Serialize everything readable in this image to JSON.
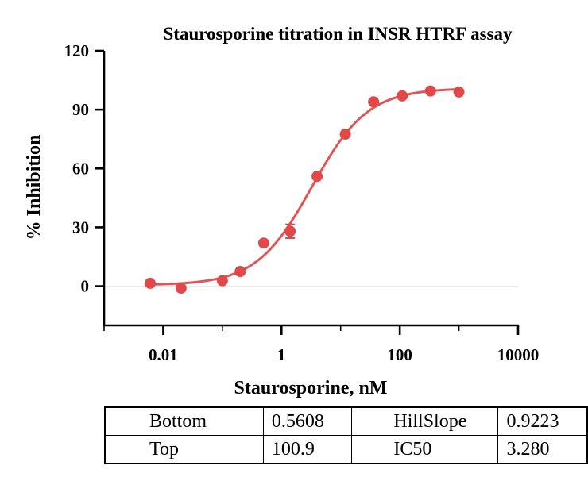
{
  "chart_data": {
    "type": "scatter",
    "title": "Staurosporine titration in INSR HTRF assay",
    "xlabel": "Staurosporine, nM",
    "ylabel": "% Inhibition",
    "x_scale": "log10",
    "xlim": [
      0.001,
      10000
    ],
    "ylim": [
      -20,
      120
    ],
    "x_ticks": [
      0.01,
      1,
      100,
      10000
    ],
    "x_tick_labels": [
      "0.01",
      "1",
      "100",
      "10000"
    ],
    "y_ticks": [
      0,
      30,
      60,
      90,
      120
    ],
    "y_tick_labels": [
      "0",
      "30",
      "60",
      "90",
      "120"
    ],
    "series": [
      {
        "points": [
          {
            "x": 0.006,
            "y": 1.5
          },
          {
            "x": 0.02,
            "y": -1.0
          },
          {
            "x": 0.1,
            "y": 2.8
          },
          {
            "x": 0.2,
            "y": 7.5
          },
          {
            "x": 0.5,
            "y": 22.0
          },
          {
            "x": 1.4,
            "y": 28.0,
            "err": 3.5
          },
          {
            "x": 4.0,
            "y": 56.0
          },
          {
            "x": 12.0,
            "y": 77.5
          },
          {
            "x": 36.0,
            "y": 94.0
          },
          {
            "x": 110.0,
            "y": 97.0
          },
          {
            "x": 330.0,
            "y": 99.5
          },
          {
            "x": 1000.0,
            "y": 99.0
          }
        ]
      }
    ],
    "fit": {
      "model": "four-parameter logistic",
      "bottom": 0.5608,
      "top": 100.9,
      "hill_slope": 0.9223,
      "ic50": 3.28,
      "x_range": [
        0.006,
        1000
      ]
    },
    "colors": {
      "points": "#e34848",
      "fit": "#e05555"
    }
  },
  "table": {
    "rows": [
      [
        "Bottom",
        "0.5608",
        "HillSlope",
        "0.9223"
      ],
      [
        "Top",
        "100.9",
        "IC50",
        "3.280"
      ]
    ]
  }
}
